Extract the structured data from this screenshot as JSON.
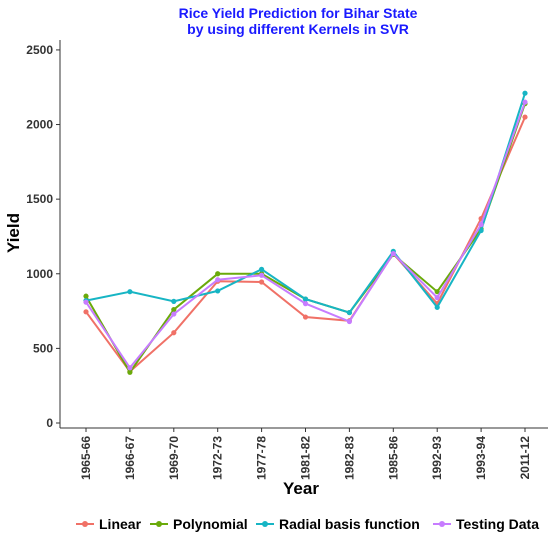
{
  "chart_data": {
    "type": "line",
    "title_line1": "Rice Yield Prediction for Bihar State",
    "title_line2": "by using different Kernels in SVR",
    "title_color": "#1a1aff",
    "xlabel": "Year",
    "ylabel": "Yield",
    "ylim": [
      0,
      2600
    ],
    "yticks": [
      0,
      500,
      1000,
      1500,
      2000,
      2500
    ],
    "categories": [
      "1965-66",
      "1966-67",
      "1969-70",
      "1972-73",
      "1977-78",
      "1981-82",
      "1982-83",
      "1985-86",
      "1992-93",
      "1993-94",
      "2011-12"
    ],
    "grid": false,
    "legend_position": "bottom",
    "series": [
      {
        "name": "Linear",
        "color": "#f07167",
        "values": [
          745,
          345,
          605,
          950,
          945,
          710,
          685,
          1135,
          800,
          1370,
          2050
        ]
      },
      {
        "name": "Polynomial",
        "color": "#6aaa0a",
        "values": [
          850,
          340,
          760,
          1000,
          1000,
          830,
          740,
          1130,
          880,
          1300,
          2140
        ]
      },
      {
        "name": "Radial basis function",
        "color": "#17b5c4",
        "values": [
          820,
          880,
          815,
          885,
          1030,
          830,
          740,
          1150,
          775,
          1290,
          2210
        ]
      },
      {
        "name": "Testing Data",
        "color": "#c77cff",
        "values": [
          810,
          370,
          730,
          960,
          990,
          800,
          680,
          1135,
          840,
          1330,
          2150
        ]
      }
    ]
  }
}
